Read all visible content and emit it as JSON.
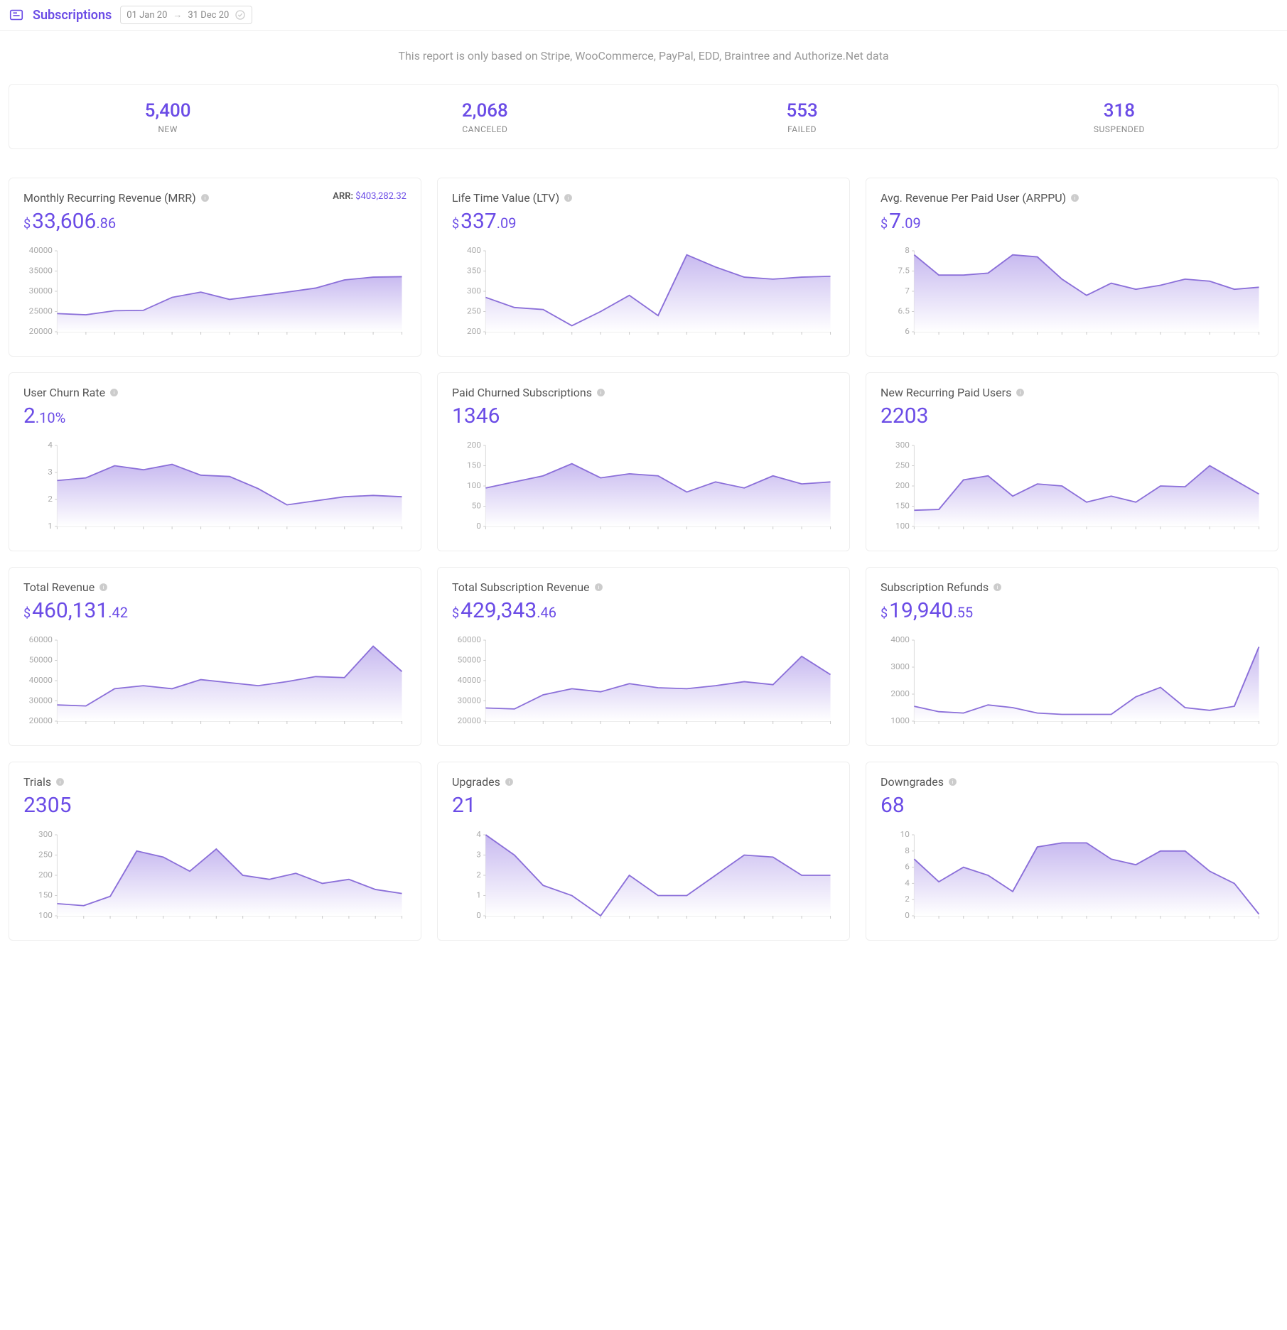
{
  "colors": {
    "accent": "#6b4ce6",
    "line": "#8b6fd9",
    "fill_top": "#c8baf0",
    "fill_bot": "#ffffff",
    "axis": "#aaaaaa",
    "border": "#eeeeee",
    "muted": "#999999"
  },
  "header": {
    "title": "Subscriptions",
    "date_from": "01 Jan 20",
    "date_to": "31 Dec 20"
  },
  "subtitle": "This report is only based on Stripe, WooCommerce, PayPal, EDD, Braintree and Authorize.Net data",
  "summary": [
    {
      "value": "5,400",
      "label": "NEW"
    },
    {
      "value": "2,068",
      "label": "CANCELED"
    },
    {
      "value": "553",
      "label": "FAILED"
    },
    {
      "value": "318",
      "label": "SUSPENDED"
    }
  ],
  "cards": [
    {
      "title": "Monthly Recurring Revenue (MRR)",
      "currency": "$",
      "int": "33,606",
      "dec": ".86",
      "arr_label": "ARR:",
      "arr_value": "$403,282.32",
      "chart": {
        "type": "area",
        "ylim": [
          20000,
          40000
        ],
        "yticks": [
          20000,
          25000,
          30000,
          35000,
          40000
        ],
        "values": [
          24500,
          24200,
          25200,
          25300,
          28500,
          29800,
          28000,
          28900,
          29800,
          30800,
          32800,
          33500,
          33606
        ]
      }
    },
    {
      "title": "Life Time Value (LTV)",
      "currency": "$",
      "int": "337",
      "dec": ".09",
      "chart": {
        "type": "area",
        "ylim": [
          200,
          400
        ],
        "yticks": [
          200,
          250,
          300,
          350,
          400
        ],
        "values": [
          285,
          260,
          255,
          215,
          250,
          290,
          240,
          390,
          360,
          335,
          330,
          335,
          337
        ]
      }
    },
    {
      "title": "Avg. Revenue Per Paid User (ARPPU)",
      "currency": "$",
      "int": "7",
      "dec": ".09",
      "chart": {
        "type": "area",
        "ylim": [
          6,
          8
        ],
        "yticks": [
          6,
          6.5,
          7,
          7.5,
          8
        ],
        "values": [
          7.9,
          7.4,
          7.4,
          7.45,
          7.9,
          7.85,
          7.3,
          6.9,
          7.2,
          7.05,
          7.15,
          7.3,
          7.25,
          7.05,
          7.1
        ]
      }
    },
    {
      "title": "User Churn Rate",
      "int": "2",
      "dec": ".10%",
      "chart": {
        "type": "area",
        "ylim": [
          1,
          4
        ],
        "yticks": [
          1,
          2,
          3,
          4
        ],
        "values": [
          2.7,
          2.8,
          3.25,
          3.1,
          3.3,
          2.9,
          2.85,
          2.4,
          1.8,
          1.95,
          2.1,
          2.15,
          2.1
        ]
      }
    },
    {
      "title": "Paid Churned Subscriptions",
      "int": "1346",
      "chart": {
        "type": "area",
        "ylim": [
          0,
          200
        ],
        "yticks": [
          0,
          50,
          100,
          150,
          200
        ],
        "values": [
          95,
          110,
          125,
          155,
          120,
          130,
          125,
          85,
          110,
          95,
          125,
          105,
          110
        ]
      }
    },
    {
      "title": "New Recurring Paid Users",
      "int": "2203",
      "chart": {
        "type": "area",
        "ylim": [
          100,
          300
        ],
        "yticks": [
          100,
          150,
          200,
          250,
          300
        ],
        "values": [
          140,
          142,
          215,
          225,
          175,
          205,
          200,
          160,
          175,
          160,
          200,
          198,
          250,
          215,
          180
        ]
      }
    },
    {
      "title": "Total Revenue",
      "currency": "$",
      "int": "460,131",
      "dec": ".42",
      "chart": {
        "type": "area",
        "ylim": [
          20000,
          60000
        ],
        "yticks": [
          20000,
          30000,
          40000,
          50000,
          60000
        ],
        "values": [
          28000,
          27500,
          36000,
          37500,
          36000,
          40500,
          39000,
          37500,
          39500,
          42000,
          41500,
          57000,
          44500
        ]
      }
    },
    {
      "title": "Total Subscription Revenue",
      "currency": "$",
      "int": "429,343",
      "dec": ".46",
      "chart": {
        "type": "area",
        "ylim": [
          20000,
          60000
        ],
        "yticks": [
          20000,
          30000,
          40000,
          50000,
          60000
        ],
        "values": [
          26500,
          26000,
          33000,
          36000,
          34500,
          38500,
          36500,
          36000,
          37500,
          39500,
          38000,
          52000,
          43000
        ]
      }
    },
    {
      "title": "Subscription Refunds",
      "currency": "$",
      "int": "19,940",
      "dec": ".55",
      "chart": {
        "type": "area",
        "ylim": [
          1000,
          4000
        ],
        "yticks": [
          1000,
          2000,
          3000,
          4000
        ],
        "values": [
          1550,
          1350,
          1300,
          1600,
          1500,
          1300,
          1250,
          1250,
          1250,
          1900,
          2250,
          1500,
          1400,
          1550,
          3750
        ]
      }
    },
    {
      "title": "Trials",
      "int": "2305",
      "chart": {
        "type": "area",
        "ylim": [
          100,
          300
        ],
        "yticks": [
          100,
          150,
          200,
          250,
          300
        ],
        "values": [
          130,
          125,
          148,
          260,
          245,
          210,
          265,
          200,
          190,
          205,
          180,
          190,
          165,
          155
        ]
      }
    },
    {
      "title": "Upgrades",
      "int": "21",
      "chart": {
        "type": "area",
        "ylim": [
          0,
          4
        ],
        "yticks": [
          0,
          1,
          2,
          3,
          4
        ],
        "values": [
          4,
          3,
          1.5,
          1,
          0,
          2,
          1,
          1,
          2,
          3,
          2.9,
          2,
          2
        ]
      }
    },
    {
      "title": "Downgrades",
      "int": "68",
      "chart": {
        "type": "area",
        "ylim": [
          0,
          10
        ],
        "yticks": [
          0,
          2,
          4,
          6,
          8,
          10
        ],
        "values": [
          7,
          4.2,
          6,
          5,
          3,
          8.5,
          9,
          9,
          7,
          6.3,
          8,
          8,
          5.5,
          4,
          0.2
        ]
      }
    }
  ]
}
